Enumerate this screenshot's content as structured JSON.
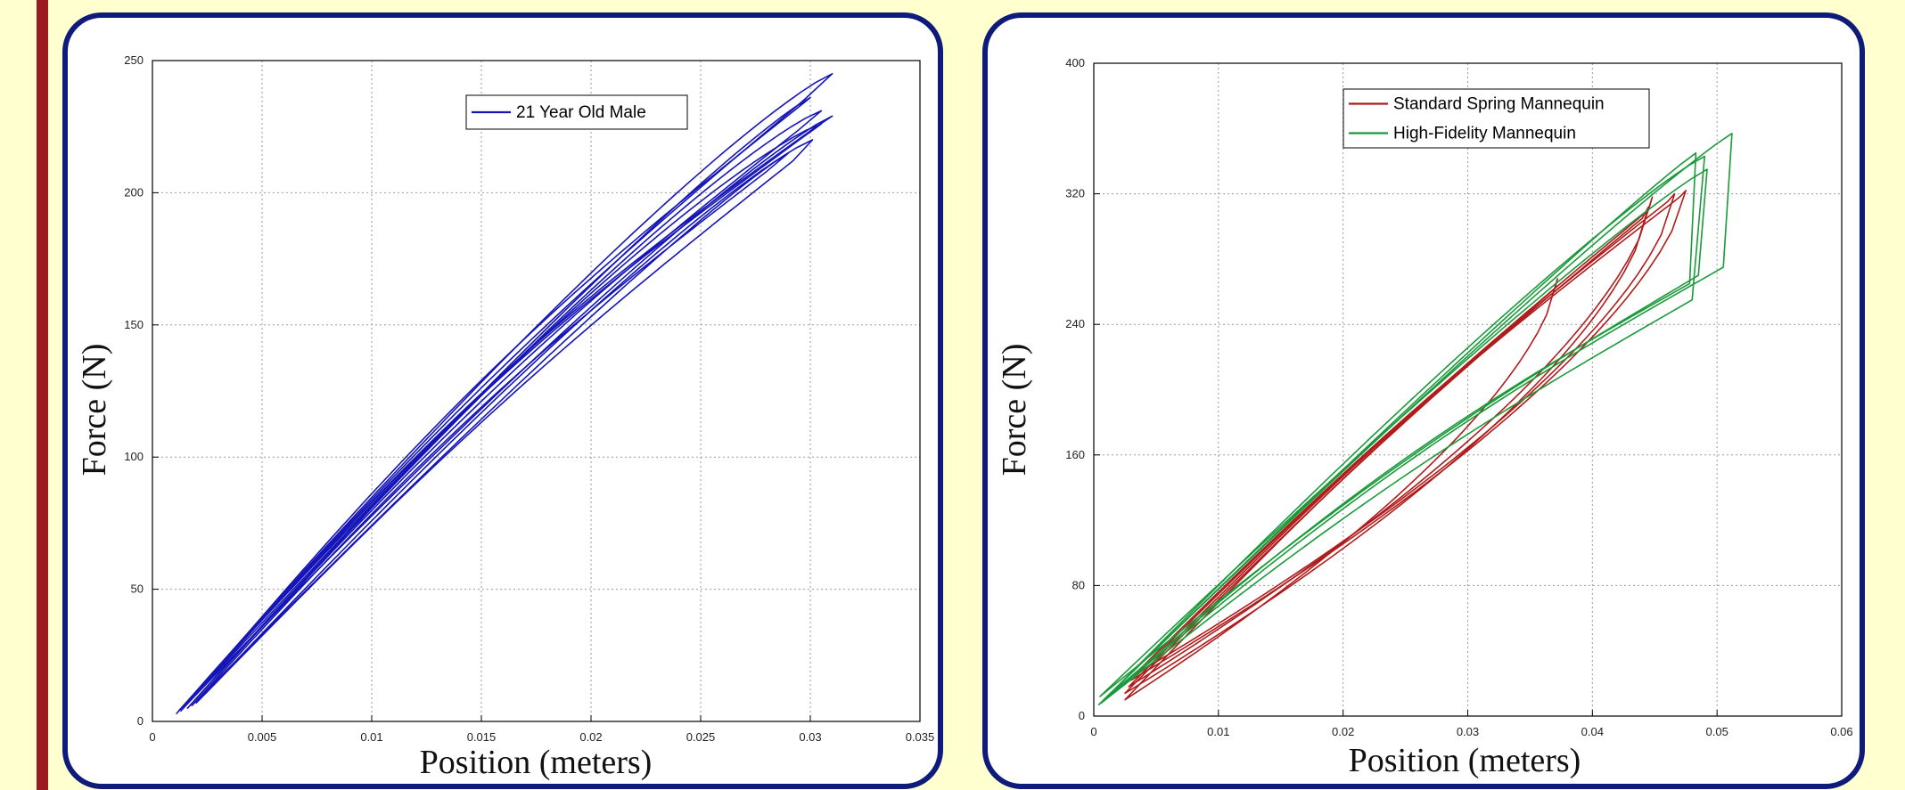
{
  "colors": {
    "background": "#ffffd0",
    "accent_bar": "#9b1b1e",
    "panel_border": "#0e1b7a",
    "blue_series": "#1515b8",
    "red_series": "#b01c1c",
    "green_series": "#1a9a3a"
  },
  "chart_data": [
    {
      "type": "line",
      "xlabel": "Position (meters)",
      "ylabel": "Force (N)",
      "xlim": [
        0,
        0.035
      ],
      "ylim": [
        0,
        250
      ],
      "xticks": [
        "0",
        "0.005",
        "0.01",
        "0.015",
        "0.02",
        "0.025",
        "0.03",
        "0.035"
      ],
      "yticks": [
        "0",
        "50",
        "100",
        "150",
        "200",
        "250"
      ],
      "grid": true,
      "legend_position": "top-right",
      "series": [
        {
          "name": "21 Year Old Male",
          "color": "#1515b8",
          "loops": [
            {
              "x0": 0.0011,
              "y0": 3,
              "xp": 0.0297,
              "yp": 235,
              "xf": 0.031,
              "yf": 245,
              "up": 0.045,
              "down": 0.5
            },
            {
              "x0": 0.0013,
              "y0": 4,
              "xp": 0.0288,
              "yp": 228,
              "xf": 0.03,
              "yf": 236,
              "up": 0.06,
              "down": 0.46
            },
            {
              "x0": 0.0016,
              "y0": 5,
              "xp": 0.0295,
              "yp": 224,
              "xf": 0.0305,
              "yf": 231,
              "up": 0.05,
              "down": 0.52
            },
            {
              "x0": 0.0014,
              "y0": 5,
              "xp": 0.0301,
              "yp": 224,
              "xf": 0.031,
              "yf": 229,
              "up": 0.07,
              "down": 0.48
            },
            {
              "x0": 0.0018,
              "y0": 6,
              "xp": 0.028,
              "yp": 208,
              "xf": 0.029,
              "yf": 215,
              "up": 0.055,
              "down": 0.44
            },
            {
              "x0": 0.002,
              "y0": 7,
              "xp": 0.0292,
              "yp": 212,
              "xf": 0.0301,
              "yf": 220,
              "up": 0.04,
              "down": 0.5
            },
            {
              "x0": 0.0012,
              "y0": 4,
              "xp": 0.0295,
              "yp": 220,
              "xf": 0.0305,
              "yf": 226,
              "up": 0.065,
              "down": 0.54
            }
          ]
        }
      ]
    },
    {
      "type": "line",
      "xlabel": "Position (meters)",
      "ylabel": "Force (N)",
      "xlim": [
        0,
        0.06
      ],
      "ylim": [
        0,
        400
      ],
      "xticks": [
        "0",
        "0.01",
        "0.02",
        "0.03",
        "0.04",
        "0.05",
        "0.06"
      ],
      "yticks": [
        "0",
        "80",
        "160",
        "240",
        "320",
        "400"
      ],
      "grid": true,
      "legend_position": "top-right",
      "series": [
        {
          "name": "Standard Spring Mannequin",
          "color": "#b01c1c",
          "loops": [
            {
              "x0": 0.0025,
              "y0": 10,
              "xp": 0.037,
              "yp": 262,
              "xf": 0.0372,
              "yf": 268,
              "up": 0.03,
              "down": 0.05
            },
            {
              "x0": 0.0028,
              "y0": 18,
              "xp": 0.0445,
              "yp": 310,
              "xf": 0.0448,
              "yf": 318,
              "up": 0.03,
              "down": 0.05
            },
            {
              "x0": 0.003,
              "y0": 22,
              "xp": 0.047,
              "yp": 318,
              "xf": 0.0475,
              "yf": 322,
              "up": 0.04,
              "down": 0.06
            },
            {
              "x0": 0.0025,
              "y0": 14,
              "xp": 0.044,
              "yp": 305,
              "xf": 0.0445,
              "yf": 312,
              "up": 0.03,
              "down": 0.04
            },
            {
              "x0": 0.0032,
              "y0": 25,
              "xp": 0.046,
              "yp": 315,
              "xf": 0.0466,
              "yf": 320,
              "up": 0.035,
              "down": 0.05
            }
          ]
        },
        {
          "name": "High-Fidelity Mannequin",
          "color": "#1a9a3a",
          "loops": [
            {
              "x0": 0.0004,
              "y0": 7,
              "xp": 0.0505,
              "yp": 275,
              "xf": 0.0512,
              "yf": 357,
              "up": 0.06,
              "down": 0.42
            },
            {
              "x0": 0.0006,
              "y0": 8,
              "xp": 0.048,
              "yp": 255,
              "xf": 0.049,
              "yf": 343,
              "up": 0.05,
              "down": 0.46
            },
            {
              "x0": 0.0008,
              "y0": 10,
              "xp": 0.0478,
              "yp": 265,
              "xf": 0.0483,
              "yf": 345,
              "up": 0.065,
              "down": 0.4
            },
            {
              "x0": 0.0005,
              "y0": 12,
              "xp": 0.0485,
              "yp": 270,
              "xf": 0.0492,
              "yf": 335,
              "up": 0.05,
              "down": 0.44
            }
          ]
        }
      ]
    }
  ]
}
